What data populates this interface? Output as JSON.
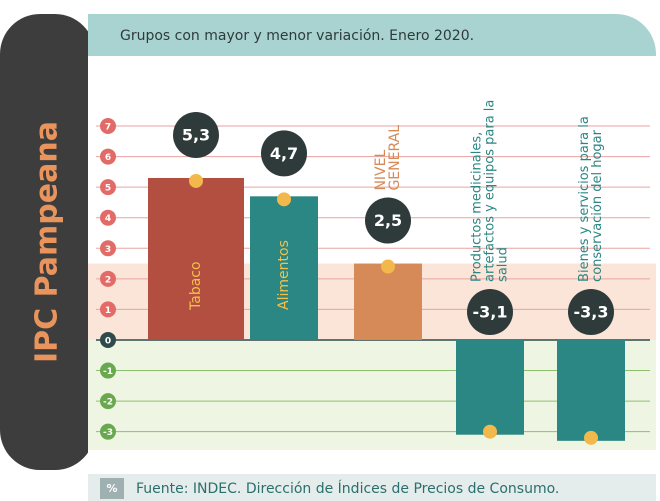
{
  "left_title": "IPC Pampeana",
  "chart_data": {
    "type": "bar",
    "title": "Grupos con mayor y menor variación. Enero 2020.",
    "categories": [
      "Tabaco",
      "Alimentos",
      "NIVEL GENERAL",
      "Productos medicinales, artefactos y equipos para la salud",
      "Bienes y servicios para la conservación del hogar"
    ],
    "values": [
      5.3,
      4.7,
      2.5,
      -3.1,
      -3.3
    ],
    "value_labels": [
      "5,3",
      "4,7",
      "2,5",
      "-3,1",
      "-3,3"
    ],
    "colors": [
      "#b24f40",
      "#2b8783",
      "#d68a58",
      "#2b8783",
      "#2b8783"
    ],
    "ylim": [
      -3.6,
      8.8
    ],
    "yticks": [
      -3,
      -2,
      -1,
      0,
      1,
      2,
      3,
      4,
      5,
      6,
      7
    ],
    "unit": "%",
    "source": "Fuente: INDEC. Dirección de Índices de Precios de Consumo."
  }
}
